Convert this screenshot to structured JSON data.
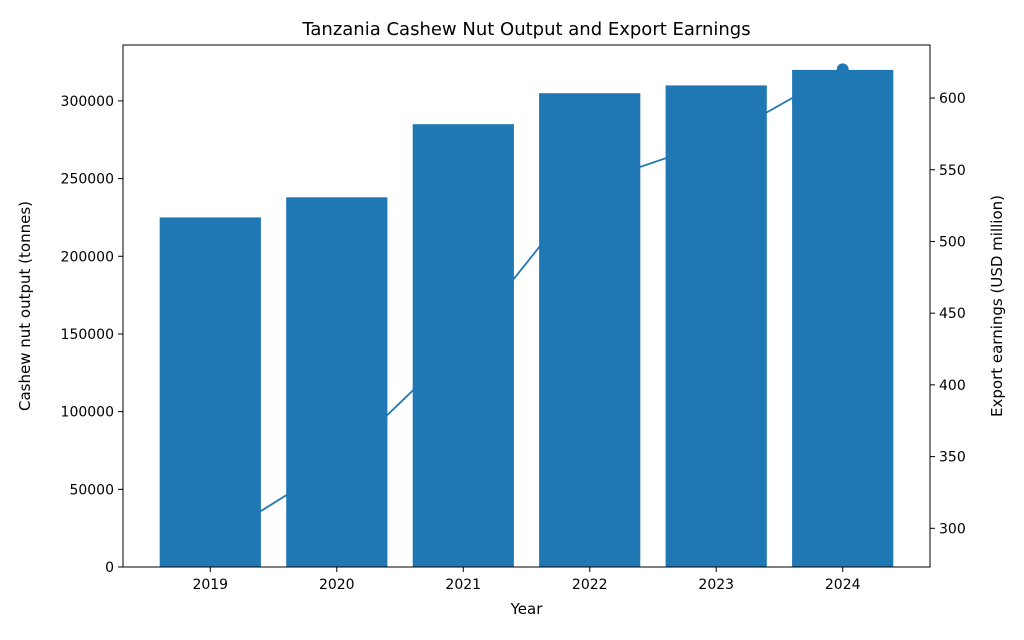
{
  "chart_data": {
    "type": "bar",
    "subtype": "bar-line-combo-dual-axis",
    "title": "Tanzania Cashew Nut Output and Export Earnings",
    "xlabel": "Year",
    "categories": [
      "2019",
      "2020",
      "2021",
      "2022",
      "2023",
      "2024"
    ],
    "series": [
      {
        "name": "Cashew nut output (tonnes)",
        "type": "bar",
        "axis": "left",
        "color": "#1f77b4",
        "values": [
          225000,
          238000,
          285000,
          305000,
          310000,
          320000
        ]
      },
      {
        "name": "Export earnings (USD million)",
        "type": "line",
        "axis": "right",
        "color": "#1f77b4",
        "marker": "circle",
        "values": [
          290,
          345,
          430,
          540,
          570,
          620
        ]
      }
    ],
    "left_axis": {
      "label": "Cashew nut output (tonnes)",
      "ticks": [
        0,
        50000,
        100000,
        150000,
        200000,
        250000,
        300000
      ],
      "lim": [
        0,
        336000
      ]
    },
    "right_axis": {
      "label": "Export earnings (USD million)",
      "ticks": [
        300,
        350,
        400,
        450,
        500,
        550,
        600
      ],
      "lim": [
        273,
        637
      ]
    },
    "grid": false,
    "legend": "none",
    "background": "#ffffff",
    "line_behind_bars": true
  }
}
